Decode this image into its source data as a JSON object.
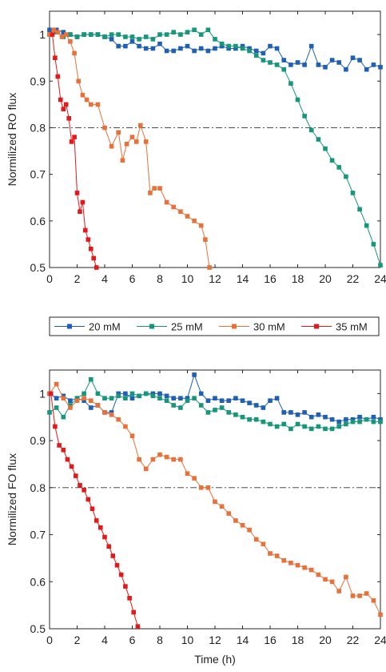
{
  "legend": [
    {
      "name": "20 mM",
      "color": "#1f5fb4"
    },
    {
      "name": "25 mM",
      "color": "#16967a"
    },
    {
      "name": "30 mM",
      "color": "#e8713a"
    },
    {
      "name": "35 mM",
      "color": "#e31a1c"
    }
  ],
  "chart_data": [
    {
      "type": "line",
      "panel": "top",
      "title": "",
      "xlabel": "",
      "ylabel": "Normilized RO flux",
      "xlim": [
        0,
        24
      ],
      "ylim": [
        0.5,
        1.05
      ],
      "xticks": [
        0,
        2,
        4,
        6,
        8,
        10,
        12,
        14,
        16,
        18,
        20,
        22,
        24
      ],
      "yticks": [
        0.5,
        0.6,
        0.7,
        0.8,
        0.9,
        1
      ],
      "ytick_labels": [
        "0.5",
        "0.6",
        "0.7",
        "0.8",
        "0.9",
        "1"
      ],
      "reference_line": 0.8,
      "marker": "square",
      "series": [
        {
          "name": "20 mM",
          "color": "#1f5fb4",
          "x": [
            0,
            0.5,
            1,
            1.5,
            2,
            2.5,
            3,
            3.5,
            4,
            4.5,
            5,
            5.5,
            6,
            6.5,
            7,
            7.5,
            8,
            8.5,
            9,
            9.5,
            10,
            10.5,
            11,
            11.5,
            12,
            12.5,
            13,
            13.5,
            14,
            14.5,
            15,
            15.5,
            16,
            16.5,
            17,
            17.5,
            18,
            18.5,
            19,
            19.5,
            20,
            20.5,
            21,
            21.5,
            22,
            22.5,
            23,
            23.5,
            24
          ],
          "y": [
            1.01,
            1.01,
            1.005,
            1.0,
            0.995,
            1.0,
            1.0,
            1.0,
            0.995,
            0.99,
            0.975,
            0.975,
            0.985,
            0.975,
            0.97,
            0.97,
            0.98,
            0.965,
            0.965,
            0.97,
            0.975,
            0.965,
            0.97,
            0.965,
            0.97,
            0.975,
            0.97,
            0.97,
            0.975,
            0.97,
            0.965,
            0.96,
            0.975,
            0.97,
            0.945,
            0.935,
            0.94,
            0.935,
            0.975,
            0.935,
            0.93,
            0.945,
            0.94,
            0.925,
            0.95,
            0.945,
            0.925,
            0.935,
            0.93
          ]
        },
        {
          "name": "25 mM",
          "color": "#16967a",
          "x": [
            0,
            0.5,
            1,
            1.5,
            2,
            2.5,
            3,
            3.5,
            4,
            4.5,
            5,
            5.5,
            6,
            6.5,
            7,
            7.5,
            8,
            8.5,
            9,
            9.5,
            10,
            10.5,
            11,
            11.5,
            12,
            12.5,
            13,
            13.5,
            14,
            14.5,
            15,
            15.5,
            16,
            16.5,
            17,
            17.5,
            18,
            18.5,
            19,
            19.5,
            20,
            20.5,
            21,
            21.5,
            22,
            22.5,
            23,
            23.5,
            24
          ],
          "y": [
            1.0,
            1.005,
            0.995,
            1.0,
            0.995,
            1.0,
            1.0,
            1.0,
            0.995,
            1.0,
            1.0,
            0.995,
            0.995,
            0.99,
            0.995,
            0.99,
            1.0,
            1.0,
            1.005,
            1.0,
            1.005,
            1.01,
            1.0,
            1.01,
            0.99,
            0.98,
            0.975,
            0.975,
            0.97,
            0.965,
            0.955,
            0.945,
            0.94,
            0.935,
            0.925,
            0.895,
            0.86,
            0.825,
            0.795,
            0.775,
            0.755,
            0.73,
            0.715,
            0.695,
            0.66,
            0.625,
            0.59,
            0.55,
            0.505
          ]
        },
        {
          "name": "30 mM",
          "color": "#e8713a",
          "x": [
            0,
            0.3,
            0.6,
            0.9,
            1.2,
            1.5,
            1.8,
            2.1,
            2.4,
            2.7,
            3,
            3.5,
            4,
            4.5,
            5,
            5.3,
            5.6,
            6,
            6.3,
            6.6,
            7,
            7.3,
            7.6,
            8,
            8.5,
            9,
            9.5,
            10,
            10.5,
            11,
            11.3,
            11.6
          ],
          "y": [
            1.0,
            1.01,
            1.005,
            0.995,
            1.0,
            0.985,
            0.96,
            0.9,
            0.87,
            0.86,
            0.85,
            0.85,
            0.8,
            0.76,
            0.79,
            0.73,
            0.765,
            0.78,
            0.77,
            0.805,
            0.77,
            0.66,
            0.67,
            0.67,
            0.64,
            0.63,
            0.62,
            0.61,
            0.6,
            0.59,
            0.56,
            0.5
          ]
        },
        {
          "name": "35 mM",
          "color": "#e31a1c",
          "x": [
            0.2,
            0.4,
            0.6,
            0.8,
            1.0,
            1.2,
            1.4,
            1.6,
            1.8,
            2.0,
            2.2,
            2.4,
            2.6,
            2.8,
            3.0,
            3.2,
            3.4
          ],
          "y": [
            1.0,
            0.95,
            0.91,
            0.86,
            0.84,
            0.85,
            0.82,
            0.77,
            0.78,
            0.66,
            0.62,
            0.64,
            0.58,
            0.56,
            0.54,
            0.52,
            0.5
          ]
        }
      ]
    },
    {
      "type": "line",
      "panel": "bottom",
      "title": "",
      "xlabel": "Time (h)",
      "ylabel": "Normilized FO flux",
      "xlim": [
        0,
        24
      ],
      "ylim": [
        0.5,
        1.05
      ],
      "xticks": [
        0,
        2,
        4,
        6,
        8,
        10,
        12,
        14,
        16,
        18,
        20,
        22,
        24
      ],
      "yticks": [
        0.5,
        0.6,
        0.7,
        0.8,
        0.9,
        1
      ],
      "ytick_labels": [
        "0.5",
        "0.6",
        "0.7",
        "0.8",
        "0.9",
        "1"
      ],
      "reference_line": 0.8,
      "marker": "square",
      "series": [
        {
          "name": "20 mM",
          "color": "#1f5fb4",
          "x": [
            0,
            0.5,
            1,
            1.5,
            2,
            2.5,
            3,
            3.5,
            4,
            4.5,
            5,
            5.5,
            6,
            6.5,
            7,
            7.5,
            8,
            8.5,
            9,
            9.5,
            10,
            10.5,
            11,
            11.5,
            12,
            12.5,
            13,
            13.5,
            14,
            14.5,
            15,
            15.5,
            16,
            16.5,
            17,
            17.5,
            18,
            18.5,
            19,
            19.5,
            20,
            20.5,
            21,
            21.5,
            22,
            22.5,
            23,
            23.5,
            24
          ],
          "y": [
            1.0,
            0.99,
            0.995,
            0.985,
            0.99,
            0.985,
            0.97,
            0.975,
            0.96,
            0.96,
            1.0,
            1.0,
            0.99,
            0.995,
            1.0,
            1.0,
            1.0,
            0.995,
            0.99,
            0.99,
            0.99,
            1.04,
            1.0,
            0.985,
            0.99,
            0.985,
            0.985,
            0.99,
            0.985,
            0.98,
            0.975,
            0.97,
            0.985,
            0.99,
            0.96,
            0.96,
            0.955,
            0.96,
            0.95,
            0.955,
            0.95,
            0.945,
            0.94,
            0.945,
            0.945,
            0.95,
            0.945,
            0.95,
            0.945
          ]
        },
        {
          "name": "25 mM",
          "color": "#16967a",
          "x": [
            0,
            0.5,
            1,
            1.5,
            2,
            2.5,
            3,
            3.5,
            4,
            4.5,
            5,
            5.5,
            6,
            6.5,
            7,
            7.5,
            8,
            8.5,
            9,
            9.5,
            10,
            10.5,
            11,
            11.5,
            12,
            12.5,
            13,
            13.5,
            14,
            14.5,
            15,
            15.5,
            16,
            16.5,
            17,
            17.5,
            18,
            18.5,
            19,
            19.5,
            20,
            20.5,
            21,
            21.5,
            22,
            22.5,
            23,
            23.5,
            24
          ],
          "y": [
            0.96,
            0.97,
            0.95,
            0.975,
            0.99,
            1.0,
            1.03,
            1.0,
            0.99,
            0.99,
            0.995,
            0.99,
            1.0,
            0.995,
            1.0,
            0.995,
            0.99,
            0.985,
            0.975,
            0.97,
            0.985,
            0.99,
            0.975,
            0.96,
            0.965,
            0.97,
            0.96,
            0.955,
            0.95,
            0.945,
            0.945,
            0.94,
            0.935,
            0.93,
            0.935,
            0.925,
            0.935,
            0.93,
            0.925,
            0.93,
            0.925,
            0.925,
            0.93,
            0.935,
            0.94,
            0.94,
            0.945,
            0.94,
            0.94
          ]
        },
        {
          "name": "30 mM",
          "color": "#e8713a",
          "x": [
            0,
            0.5,
            1,
            1.5,
            2,
            2.5,
            3,
            3.5,
            4,
            4.5,
            5,
            5.5,
            6,
            6.5,
            7,
            7.5,
            8,
            8.5,
            9,
            9.5,
            10,
            10.5,
            11,
            11.5,
            12,
            12.5,
            13,
            13.5,
            14,
            14.5,
            15,
            15.5,
            16,
            16.5,
            17,
            17.5,
            18,
            18.5,
            19,
            19.5,
            20,
            20.5,
            21,
            21.5,
            22,
            22.5,
            23,
            23.5,
            24
          ],
          "y": [
            1.0,
            1.02,
            0.99,
            0.97,
            0.985,
            0.99,
            0.985,
            0.975,
            0.96,
            0.955,
            0.945,
            0.93,
            0.91,
            0.86,
            0.84,
            0.86,
            0.87,
            0.865,
            0.86,
            0.86,
            0.83,
            0.82,
            0.8,
            0.8,
            0.77,
            0.76,
            0.745,
            0.73,
            0.72,
            0.71,
            0.69,
            0.68,
            0.66,
            0.655,
            0.645,
            0.64,
            0.635,
            0.63,
            0.625,
            0.615,
            0.605,
            0.6,
            0.58,
            0.61,
            0.57,
            0.57,
            0.575,
            0.56,
            0.53
          ]
        },
        {
          "name": "35 mM",
          "color": "#e31a1c",
          "x": [
            0.1,
            0.4,
            0.7,
            1.0,
            1.3,
            1.6,
            1.9,
            2.2,
            2.5,
            2.8,
            3.1,
            3.4,
            3.7,
            4.0,
            4.3,
            4.6,
            4.9,
            5.2,
            5.5,
            5.8,
            6.1,
            6.4
          ],
          "y": [
            1.0,
            0.93,
            0.89,
            0.88,
            0.86,
            0.845,
            0.825,
            0.805,
            0.795,
            0.775,
            0.755,
            0.73,
            0.715,
            0.695,
            0.675,
            0.655,
            0.635,
            0.615,
            0.59,
            0.565,
            0.535,
            0.505
          ]
        }
      ]
    }
  ]
}
